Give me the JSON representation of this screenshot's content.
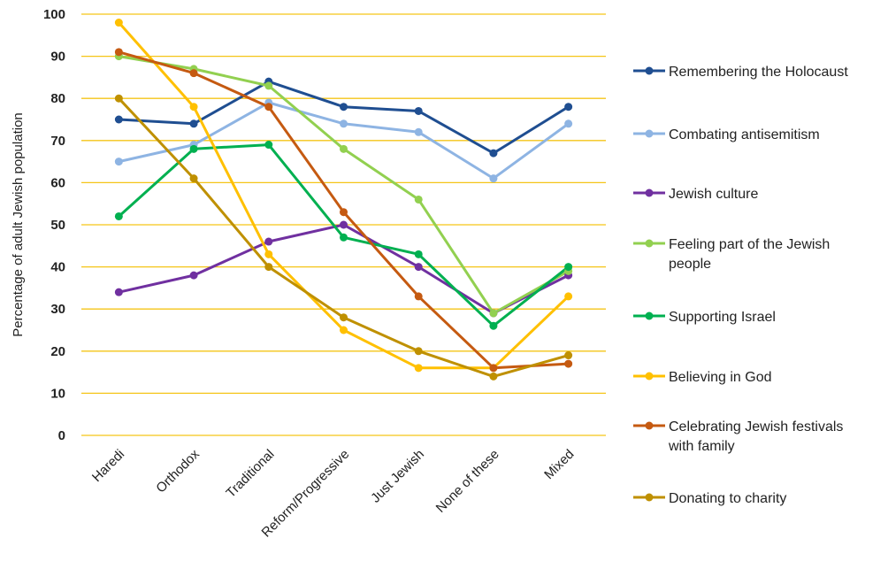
{
  "chart_data": {
    "type": "line",
    "title": "",
    "xlabel": "",
    "ylabel": "Percentage of adult Jewish population",
    "ylim": [
      0,
      100
    ],
    "yticks": [
      "0",
      "10",
      "20",
      "30",
      "40",
      "50",
      "60",
      "70",
      "80",
      "90",
      "100"
    ],
    "grid": true,
    "grid_color": "#f5c518",
    "legend_position": "right",
    "categories": [
      "Haredi",
      "Orthodox",
      "Traditional",
      "Reform/Progressive",
      "Just Jewish",
      "None of these",
      "Mixed"
    ],
    "series": [
      {
        "name": "Remembering the Holocaust",
        "name_lines": [
          "Remembering the Holocaust"
        ],
        "color": "#1f4e91",
        "values": [
          75,
          74,
          84,
          78,
          77,
          67,
          78
        ]
      },
      {
        "name": "Combating antisemitism",
        "name_lines": [
          "Combating antisemitism"
        ],
        "color": "#8eb4e3",
        "values": [
          65,
          69,
          79,
          74,
          72,
          61,
          74
        ]
      },
      {
        "name": "Jewish culture",
        "name_lines": [
          "Jewish culture"
        ],
        "color": "#7030a0",
        "values": [
          34,
          38,
          46,
          50,
          40,
          29,
          38
        ]
      },
      {
        "name": "Feeling part of the Jewish people",
        "name_lines": [
          "Feeling part of the Jewish",
          "people"
        ],
        "color": "#92d050",
        "values": [
          90,
          87,
          83,
          68,
          56,
          29,
          39
        ]
      },
      {
        "name": "Supporting Israel",
        "name_lines": [
          "Supporting Israel"
        ],
        "color": "#00b050",
        "values": [
          52,
          68,
          69,
          47,
          43,
          26,
          40
        ]
      },
      {
        "name": "Believing in God",
        "name_lines": [
          "Believing in God"
        ],
        "color": "#ffc000",
        "values": [
          98,
          78,
          43,
          25,
          16,
          16,
          33
        ]
      },
      {
        "name": "Celebrating Jewish festivals with family",
        "name_lines": [
          "Celebrating Jewish festivals",
          "with family"
        ],
        "color": "#c55a11",
        "values": [
          91,
          86,
          78,
          53,
          33,
          16,
          17
        ]
      },
      {
        "name": "Donating to charity",
        "name_lines": [
          "Donating to charity"
        ],
        "color": "#bf9000",
        "values": [
          80,
          61,
          40,
          28,
          20,
          14,
          19
        ]
      }
    ]
  }
}
